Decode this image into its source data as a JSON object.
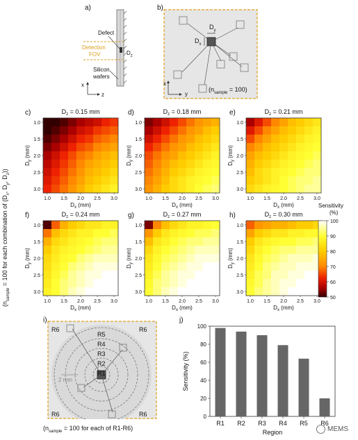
{
  "panel_labels": {
    "a": "a)",
    "b": "b)",
    "c": "c)",
    "d": "d)",
    "e": "e)",
    "f": "f)",
    "g": "g)",
    "h": "h)",
    "i": "i)",
    "j": "j)"
  },
  "panel_a": {
    "defect": "Defect",
    "detection": "Detection",
    "fov": "FOV",
    "dz": "D",
    "dz_sub": "z",
    "silicon": "Silicon",
    "wafers": "wafers",
    "axis_x": "x",
    "axis_z": "z"
  },
  "panel_b": {
    "dy": "D",
    "dy_sub": "y",
    "dx": "D",
    "dx_sub": "x",
    "axis_x": "x",
    "axis_y": "y",
    "note_pre": "(n",
    "note_sub": "sample",
    "note_post": " = 100)"
  },
  "side_label": {
    "pre": "(n",
    "sub": "sample",
    "mid": " = 100 for each combination of (D",
    "x": "x",
    "comma1": ", D",
    "y": "y",
    "comma2": ", D",
    "z": "z",
    "post": "))"
  },
  "heatmap_common": {
    "ylabel": "D",
    "ylabel_sub": "y",
    "ylabel_unit": " (mm)",
    "xlabel": "D",
    "xlabel_sub": "x",
    "xlabel_unit": " (mm)",
    "yticks": [
      "1.0",
      "1.5",
      "2.0",
      "2.5",
      "3.0"
    ],
    "xticks": [
      "1.0",
      "1.5",
      "2.0",
      "2.5",
      "3.0"
    ]
  },
  "colorbar": {
    "title": "Sensitivity",
    "unit": "(%)",
    "ticks": [
      "100",
      "90",
      "80",
      "70",
      "60",
      "50"
    ],
    "colors": [
      "#ffffff",
      "#ffff33",
      "#ffcc00",
      "#ff8800",
      "#ee2200",
      "#aa0000",
      "#330000"
    ]
  },
  "panel_i": {
    "regions": [
      "R1",
      "R2",
      "R3",
      "R4",
      "R5",
      "R6"
    ],
    "corner": "R6",
    "scale": "2 mm",
    "note_pre": "(n",
    "note_sub": "sample",
    "note_post": " = 100 for each of R1-R6)"
  },
  "chart_data": [
    {
      "type": "heatmap",
      "title": "D_z = 0.15 mm",
      "title_main": "D",
      "title_sub": "z",
      "title_rest": " = 0.15 mm",
      "xlabel": "D_x (mm)",
      "ylabel": "D_y (mm)",
      "x": [
        1.0,
        1.25,
        1.5,
        1.75,
        2.0,
        2.25,
        2.5,
        2.75,
        3.0
      ],
      "y": [
        1.0,
        1.25,
        1.5,
        1.75,
        2.0,
        2.25,
        2.5,
        2.75,
        3.0
      ],
      "values": [
        [
          50,
          50,
          52,
          55,
          58,
          60,
          62,
          66,
          68
        ],
        [
          50,
          52,
          55,
          58,
          62,
          64,
          68,
          70,
          72
        ],
        [
          52,
          55,
          58,
          62,
          66,
          68,
          72,
          74,
          76
        ],
        [
          55,
          58,
          62,
          66,
          70,
          72,
          76,
          78,
          80
        ],
        [
          58,
          62,
          66,
          70,
          74,
          76,
          80,
          82,
          84
        ],
        [
          60,
          64,
          68,
          72,
          76,
          80,
          82,
          84,
          86
        ],
        [
          62,
          66,
          70,
          74,
          78,
          82,
          84,
          86,
          88
        ],
        [
          64,
          68,
          72,
          76,
          80,
          84,
          86,
          88,
          90
        ],
        [
          66,
          70,
          74,
          78,
          82,
          86,
          88,
          90,
          92
        ]
      ],
      "zlim": [
        50,
        100
      ]
    },
    {
      "type": "heatmap",
      "title": "D_z = 0.18 mm",
      "title_main": "D",
      "title_sub": "z",
      "title_rest": " = 0.18 mm",
      "xlabel": "D_x (mm)",
      "ylabel": "D_y (mm)",
      "x": [
        1.0,
        1.25,
        1.5,
        1.75,
        2.0,
        2.25,
        2.5,
        2.75,
        3.0
      ],
      "y": [
        1.0,
        1.25,
        1.5,
        1.75,
        2.0,
        2.25,
        2.5,
        2.75,
        3.0
      ],
      "values": [
        [
          55,
          58,
          62,
          66,
          70,
          74,
          78,
          80,
          82
        ],
        [
          58,
          62,
          66,
          70,
          74,
          78,
          80,
          84,
          86
        ],
        [
          62,
          66,
          70,
          74,
          78,
          80,
          84,
          86,
          88
        ],
        [
          66,
          70,
          74,
          78,
          80,
          84,
          86,
          88,
          90
        ],
        [
          70,
          74,
          78,
          80,
          84,
          86,
          88,
          90,
          92
        ],
        [
          72,
          76,
          80,
          84,
          86,
          88,
          90,
          92,
          93
        ],
        [
          74,
          78,
          82,
          86,
          88,
          90,
          92,
          93,
          94
        ],
        [
          76,
          80,
          84,
          88,
          90,
          92,
          93,
          94,
          95
        ],
        [
          78,
          82,
          86,
          88,
          90,
          92,
          94,
          95,
          96
        ]
      ],
      "zlim": [
        50,
        100
      ]
    },
    {
      "type": "heatmap",
      "title": "D_z = 0.21 mm",
      "title_main": "D",
      "title_sub": "z",
      "title_rest": " = 0.21 mm",
      "xlabel": "D_x (mm)",
      "ylabel": "D_y (mm)",
      "x": [
        1.0,
        1.25,
        1.5,
        1.75,
        2.0,
        2.25,
        2.5,
        2.75,
        3.0
      ],
      "y": [
        1.0,
        1.25,
        1.5,
        1.75,
        2.0,
        2.25,
        2.5,
        2.75,
        3.0
      ],
      "values": [
        [
          58,
          64,
          70,
          76,
          80,
          84,
          86,
          88,
          90
        ],
        [
          64,
          70,
          76,
          80,
          84,
          86,
          88,
          90,
          92
        ],
        [
          70,
          76,
          80,
          84,
          86,
          88,
          90,
          92,
          93
        ],
        [
          76,
          80,
          84,
          86,
          88,
          90,
          92,
          93,
          94
        ],
        [
          80,
          84,
          86,
          88,
          90,
          92,
          93,
          94,
          95
        ],
        [
          82,
          86,
          88,
          90,
          92,
          93,
          94,
          95,
          96
        ],
        [
          84,
          88,
          90,
          92,
          93,
          94,
          95,
          96,
          96
        ],
        [
          86,
          88,
          90,
          92,
          94,
          95,
          96,
          96,
          97
        ],
        [
          88,
          90,
          92,
          93,
          94,
          95,
          96,
          97,
          97
        ]
      ],
      "zlim": [
        50,
        100
      ]
    },
    {
      "type": "heatmap",
      "title": "D_z = 0.24 mm",
      "title_main": "D",
      "title_sub": "z",
      "title_rest": " = 0.24 mm",
      "xlabel": "D_x (mm)",
      "ylabel": "D_y (mm)",
      "x": [
        1.0,
        1.25,
        1.5,
        1.75,
        2.0,
        2.25,
        2.5,
        2.75,
        3.0
      ],
      "y": [
        1.0,
        1.25,
        1.5,
        1.75,
        2.0,
        2.25,
        2.5,
        2.75,
        3.0
      ],
      "values": [
        [
          52,
          72,
          82,
          86,
          88,
          90,
          90,
          92,
          92
        ],
        [
          74,
          84,
          88,
          90,
          92,
          92,
          94,
          94,
          95
        ],
        [
          82,
          88,
          90,
          92,
          93,
          94,
          95,
          96,
          96
        ],
        [
          86,
          90,
          92,
          93,
          94,
          95,
          96,
          97,
          97
        ],
        [
          88,
          91,
          93,
          94,
          96,
          97,
          98,
          98,
          98
        ],
        [
          89,
          92,
          94,
          96,
          97,
          98,
          99,
          99,
          99
        ],
        [
          90,
          93,
          95,
          97,
          98,
          99,
          99,
          100,
          100
        ],
        [
          91,
          94,
          96,
          97,
          98,
          99,
          100,
          100,
          100
        ],
        [
          92,
          94,
          96,
          98,
          99,
          100,
          100,
          100,
          100
        ]
      ],
      "zlim": [
        50,
        100
      ]
    },
    {
      "type": "heatmap",
      "title": "D_z = 0.27 mm",
      "title_main": "D",
      "title_sub": "z",
      "title_rest": " = 0.27 mm",
      "xlabel": "D_x (mm)",
      "ylabel": "D_y (mm)",
      "x": [
        1.0,
        1.25,
        1.5,
        1.75,
        2.0,
        2.25,
        2.5,
        2.75,
        3.0
      ],
      "y": [
        1.0,
        1.25,
        1.5,
        1.75,
        2.0,
        2.25,
        2.5,
        2.75,
        3.0
      ],
      "values": [
        [
          55,
          76,
          84,
          88,
          90,
          92,
          92,
          93,
          94
        ],
        [
          78,
          86,
          90,
          92,
          93,
          94,
          95,
          95,
          96
        ],
        [
          84,
          90,
          92,
          94,
          95,
          96,
          96,
          97,
          97
        ],
        [
          88,
          92,
          94,
          95,
          96,
          97,
          98,
          98,
          98
        ],
        [
          90,
          93,
          95,
          96,
          97,
          98,
          99,
          99,
          99
        ],
        [
          91,
          94,
          96,
          97,
          98,
          99,
          99,
          100,
          100
        ],
        [
          92,
          95,
          97,
          98,
          99,
          99,
          100,
          100,
          100
        ],
        [
          93,
          96,
          97,
          98,
          99,
          100,
          100,
          100,
          100
        ],
        [
          94,
          96,
          98,
          99,
          100,
          100,
          100,
          100,
          100
        ]
      ],
      "zlim": [
        50,
        100
      ]
    },
    {
      "type": "heatmap",
      "title": "D_z = 0.30 mm",
      "title_main": "D",
      "title_sub": "z",
      "title_rest": " = 0.30 mm",
      "xlabel": "D_x (mm)",
      "ylabel": "D_y (mm)",
      "x": [
        1.0,
        1.25,
        1.5,
        1.75,
        2.0,
        2.25,
        2.5,
        2.75,
        3.0
      ],
      "y": [
        1.0,
        1.25,
        1.5,
        1.75,
        2.0,
        2.25,
        2.5,
        2.75,
        3.0
      ],
      "values": [
        [
          72,
          78,
          80,
          82,
          82,
          84,
          86,
          86,
          88
        ],
        [
          80,
          86,
          88,
          90,
          90,
          92,
          92,
          93,
          93
        ],
        [
          86,
          90,
          92,
          93,
          94,
          94,
          95,
          95,
          96
        ],
        [
          88,
          92,
          94,
          95,
          96,
          96,
          97,
          97,
          97
        ],
        [
          90,
          93,
          95,
          96,
          97,
          98,
          98,
          98,
          99
        ],
        [
          91,
          94,
          96,
          97,
          98,
          98,
          99,
          99,
          99
        ],
        [
          92,
          95,
          96,
          98,
          98,
          99,
          99,
          100,
          100
        ],
        [
          93,
          95,
          97,
          98,
          99,
          99,
          100,
          100,
          100
        ],
        [
          94,
          96,
          97,
          98,
          99,
          100,
          100,
          100,
          100
        ]
      ],
      "zlim": [
        50,
        100
      ]
    },
    {
      "type": "bar",
      "categories": [
        "R1",
        "R2",
        "R3",
        "R4",
        "R5",
        "R6"
      ],
      "values": [
        98,
        94,
        90,
        79,
        64,
        20
      ],
      "xlabel": "Region",
      "ylabel": "Sensitivity (%)",
      "ylim": [
        0,
        100
      ],
      "yticks": [
        "0",
        "20",
        "40",
        "60",
        "80",
        "100"
      ],
      "bar_color": "#666666"
    }
  ],
  "watermark": "MEMS"
}
